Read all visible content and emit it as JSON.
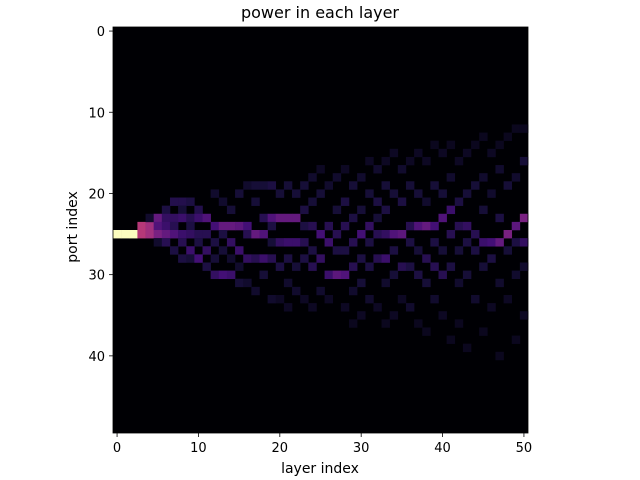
{
  "chart_data": {
    "type": "heatmap",
    "title": "power in each layer",
    "xlabel": "layer index",
    "ylabel": "port index",
    "x_ticks": [
      0,
      10,
      20,
      30,
      40,
      50
    ],
    "y_ticks": [
      0,
      10,
      20,
      30,
      40
    ],
    "xlim": [
      -0.5,
      50.5
    ],
    "ylim": [
      49.5,
      -0.5
    ],
    "n_layers": 51,
    "n_ports": 50,
    "colormap": "magma",
    "colormap_stops": [
      "#000004",
      "#180f3d",
      "#440f76",
      "#721f81",
      "#9e2f7f",
      "#cd4071",
      "#f1605d",
      "#fd9668",
      "#feca8d",
      "#fcfdbf"
    ],
    "background_value": 0.0,
    "cells": [
      [
        0,
        25,
        1.0
      ],
      [
        1,
        25,
        1.0
      ],
      [
        2,
        25,
        1.0
      ],
      [
        3,
        24,
        0.5
      ],
      [
        3,
        25,
        0.5
      ],
      [
        4,
        24,
        0.45
      ],
      [
        4,
        25,
        0.45
      ],
      [
        4,
        23,
        0.08
      ],
      [
        5,
        23,
        0.3
      ],
      [
        5,
        24,
        0.25
      ],
      [
        5,
        25,
        0.35
      ],
      [
        5,
        26,
        0.08
      ],
      [
        6,
        22,
        0.12
      ],
      [
        6,
        23,
        0.18
      ],
      [
        6,
        24,
        0.2
      ],
      [
        6,
        25,
        0.3
      ],
      [
        6,
        26,
        0.15
      ],
      [
        7,
        21,
        0.14
      ],
      [
        7,
        23,
        0.18
      ],
      [
        7,
        24,
        0.15
      ],
      [
        7,
        25,
        0.25
      ],
      [
        7,
        27,
        0.12
      ],
      [
        8,
        21,
        0.14
      ],
      [
        8,
        22,
        0.1
      ],
      [
        8,
        23,
        0.2
      ],
      [
        8,
        25,
        0.2
      ],
      [
        8,
        26,
        0.15
      ],
      [
        8,
        28,
        0.12
      ],
      [
        9,
        21,
        0.12
      ],
      [
        9,
        23,
        0.15
      ],
      [
        9,
        24,
        0.12
      ],
      [
        9,
        25,
        0.18
      ],
      [
        9,
        27,
        0.2
      ],
      [
        9,
        28,
        0.1
      ],
      [
        10,
        22,
        0.14
      ],
      [
        10,
        23,
        0.2
      ],
      [
        10,
        25,
        0.15
      ],
      [
        10,
        26,
        0.12
      ],
      [
        10,
        28,
        0.22
      ],
      [
        11,
        23,
        0.25
      ],
      [
        11,
        25,
        0.15
      ],
      [
        11,
        27,
        0.18
      ],
      [
        11,
        29,
        0.12
      ],
      [
        12,
        20,
        0.08
      ],
      [
        12,
        24,
        0.22
      ],
      [
        12,
        26,
        0.12
      ],
      [
        12,
        28,
        0.1
      ],
      [
        12,
        30,
        0.18
      ],
      [
        13,
        21,
        0.08
      ],
      [
        13,
        24,
        0.3
      ],
      [
        13,
        25,
        0.12
      ],
      [
        13,
        27,
        0.1
      ],
      [
        13,
        30,
        0.22
      ],
      [
        14,
        22,
        0.1
      ],
      [
        14,
        24,
        0.3
      ],
      [
        14,
        26,
        0.18
      ],
      [
        14,
        28,
        0.08
      ],
      [
        14,
        30,
        0.2
      ],
      [
        15,
        20,
        0.1
      ],
      [
        15,
        24,
        0.28
      ],
      [
        15,
        27,
        0.2
      ],
      [
        15,
        29,
        0.08
      ],
      [
        15,
        31,
        0.1
      ],
      [
        16,
        19,
        0.08
      ],
      [
        16,
        24,
        0.22
      ],
      [
        16,
        25,
        0.15
      ],
      [
        16,
        28,
        0.18
      ],
      [
        16,
        31,
        0.08
      ],
      [
        17,
        19,
        0.1
      ],
      [
        17,
        21,
        0.1
      ],
      [
        17,
        25,
        0.3
      ],
      [
        17,
        28,
        0.15
      ],
      [
        17,
        32,
        0.08
      ],
      [
        18,
        19,
        0.1
      ],
      [
        18,
        23,
        0.15
      ],
      [
        18,
        25,
        0.25
      ],
      [
        18,
        28,
        0.2
      ],
      [
        18,
        30,
        0.1
      ],
      [
        19,
        19,
        0.12
      ],
      [
        19,
        23,
        0.25
      ],
      [
        19,
        24,
        0.12
      ],
      [
        19,
        26,
        0.1
      ],
      [
        19,
        28,
        0.15
      ],
      [
        19,
        33,
        0.08
      ],
      [
        20,
        20,
        0.1
      ],
      [
        20,
        23,
        0.3
      ],
      [
        20,
        26,
        0.18
      ],
      [
        20,
        29,
        0.12
      ],
      [
        20,
        33,
        0.06
      ],
      [
        21,
        19,
        0.1
      ],
      [
        21,
        23,
        0.3
      ],
      [
        21,
        26,
        0.2
      ],
      [
        21,
        28,
        0.12
      ],
      [
        21,
        31,
        0.08
      ],
      [
        21,
        34,
        0.06
      ],
      [
        22,
        20,
        0.1
      ],
      [
        22,
        23,
        0.3
      ],
      [
        22,
        26,
        0.2
      ],
      [
        22,
        29,
        0.1
      ],
      [
        22,
        32,
        0.08
      ],
      [
        23,
        19,
        0.1
      ],
      [
        23,
        22,
        0.12
      ],
      [
        23,
        24,
        0.12
      ],
      [
        23,
        26,
        0.15
      ],
      [
        23,
        28,
        0.12
      ],
      [
        23,
        33,
        0.06
      ],
      [
        24,
        18,
        0.08
      ],
      [
        24,
        21,
        0.1
      ],
      [
        24,
        24,
        0.15
      ],
      [
        24,
        27,
        0.12
      ],
      [
        24,
        29,
        0.15
      ],
      [
        24,
        34,
        0.06
      ],
      [
        25,
        17,
        0.06
      ],
      [
        25,
        20,
        0.1
      ],
      [
        25,
        25,
        0.22
      ],
      [
        25,
        28,
        0.18
      ],
      [
        25,
        32,
        0.08
      ],
      [
        26,
        19,
        0.08
      ],
      [
        26,
        24,
        0.15
      ],
      [
        26,
        26,
        0.2
      ],
      [
        26,
        30,
        0.2
      ],
      [
        26,
        33,
        0.06
      ],
      [
        27,
        18,
        0.08
      ],
      [
        27,
        22,
        0.1
      ],
      [
        27,
        25,
        0.15
      ],
      [
        27,
        27,
        0.12
      ],
      [
        27,
        30,
        0.28
      ],
      [
        28,
        17,
        0.06
      ],
      [
        28,
        21,
        0.12
      ],
      [
        28,
        24,
        0.15
      ],
      [
        28,
        27,
        0.12
      ],
      [
        28,
        30,
        0.25
      ],
      [
        28,
        34,
        0.06
      ],
      [
        29,
        19,
        0.1
      ],
      [
        29,
        23,
        0.12
      ],
      [
        29,
        26,
        0.15
      ],
      [
        29,
        29,
        0.15
      ],
      [
        29,
        32,
        0.08
      ],
      [
        29,
        36,
        0.05
      ],
      [
        30,
        18,
        0.08
      ],
      [
        30,
        22,
        0.1
      ],
      [
        30,
        25,
        0.22
      ],
      [
        30,
        28,
        0.12
      ],
      [
        30,
        31,
        0.1
      ],
      [
        30,
        35,
        0.06
      ],
      [
        31,
        16,
        0.06
      ],
      [
        31,
        20,
        0.1
      ],
      [
        31,
        24,
        0.18
      ],
      [
        31,
        26,
        0.12
      ],
      [
        31,
        29,
        0.12
      ],
      [
        31,
        33,
        0.08
      ],
      [
        32,
        17,
        0.08
      ],
      [
        32,
        21,
        0.12
      ],
      [
        32,
        23,
        0.1
      ],
      [
        32,
        25,
        0.15
      ],
      [
        32,
        28,
        0.15
      ],
      [
        32,
        34,
        0.06
      ],
      [
        33,
        16,
        0.06
      ],
      [
        33,
        19,
        0.1
      ],
      [
        33,
        22,
        0.12
      ],
      [
        33,
        25,
        0.18
      ],
      [
        33,
        28,
        0.2
      ],
      [
        33,
        31,
        0.08
      ],
      [
        33,
        36,
        0.05
      ],
      [
        34,
        15,
        0.06
      ],
      [
        34,
        20,
        0.1
      ],
      [
        34,
        25,
        0.25
      ],
      [
        34,
        27,
        0.12
      ],
      [
        34,
        30,
        0.1
      ],
      [
        34,
        35,
        0.06
      ],
      [
        35,
        17,
        0.08
      ],
      [
        35,
        21,
        0.12
      ],
      [
        35,
        25,
        0.28
      ],
      [
        35,
        29,
        0.15
      ],
      [
        35,
        33,
        0.06
      ],
      [
        36,
        16,
        0.06
      ],
      [
        36,
        19,
        0.1
      ],
      [
        36,
        24,
        0.15
      ],
      [
        36,
        26,
        0.12
      ],
      [
        36,
        29,
        0.12
      ],
      [
        36,
        34,
        0.08
      ],
      [
        37,
        15,
        0.06
      ],
      [
        37,
        20,
        0.1
      ],
      [
        37,
        24,
        0.25
      ],
      [
        37,
        27,
        0.1
      ],
      [
        37,
        30,
        0.12
      ],
      [
        37,
        36,
        0.05
      ],
      [
        38,
        16,
        0.06
      ],
      [
        38,
        21,
        0.08
      ],
      [
        38,
        24,
        0.3
      ],
      [
        38,
        28,
        0.15
      ],
      [
        38,
        31,
        0.1
      ],
      [
        38,
        37,
        0.05
      ],
      [
        39,
        14,
        0.05
      ],
      [
        39,
        19,
        0.1
      ],
      [
        39,
        24,
        0.22
      ],
      [
        39,
        26,
        0.12
      ],
      [
        39,
        29,
        0.15
      ],
      [
        39,
        33,
        0.08
      ],
      [
        40,
        15,
        0.06
      ],
      [
        40,
        20,
        0.1
      ],
      [
        40,
        23,
        0.25
      ],
      [
        40,
        27,
        0.1
      ],
      [
        40,
        30,
        0.15
      ],
      [
        40,
        35,
        0.06
      ],
      [
        41,
        14,
        0.05
      ],
      [
        41,
        18,
        0.08
      ],
      [
        41,
        22,
        0.2
      ],
      [
        41,
        25,
        0.15
      ],
      [
        41,
        29,
        0.12
      ],
      [
        41,
        38,
        0.05
      ],
      [
        42,
        16,
        0.06
      ],
      [
        42,
        21,
        0.12
      ],
      [
        42,
        24,
        0.15
      ],
      [
        42,
        27,
        0.1
      ],
      [
        42,
        31,
        0.08
      ],
      [
        42,
        36,
        0.05
      ],
      [
        43,
        15,
        0.06
      ],
      [
        43,
        20,
        0.1
      ],
      [
        43,
        24,
        0.18
      ],
      [
        43,
        26,
        0.12
      ],
      [
        43,
        30,
        0.1
      ],
      [
        43,
        39,
        0.05
      ],
      [
        44,
        14,
        0.05
      ],
      [
        44,
        19,
        0.1
      ],
      [
        44,
        25,
        0.15
      ],
      [
        44,
        27,
        0.12
      ],
      [
        44,
        33,
        0.08
      ],
      [
        45,
        13,
        0.05
      ],
      [
        45,
        18,
        0.08
      ],
      [
        45,
        22,
        0.1
      ],
      [
        45,
        26,
        0.2
      ],
      [
        45,
        29,
        0.1
      ],
      [
        45,
        37,
        0.05
      ],
      [
        46,
        15,
        0.06
      ],
      [
        46,
        20,
        0.08
      ],
      [
        46,
        26,
        0.22
      ],
      [
        46,
        28,
        0.12
      ],
      [
        46,
        34,
        0.06
      ],
      [
        47,
        14,
        0.05
      ],
      [
        47,
        17,
        0.08
      ],
      [
        47,
        23,
        0.12
      ],
      [
        47,
        26,
        0.3
      ],
      [
        47,
        31,
        0.08
      ],
      [
        47,
        40,
        0.05
      ],
      [
        48,
        13,
        0.05
      ],
      [
        48,
        19,
        0.1
      ],
      [
        48,
        25,
        0.35
      ],
      [
        48,
        27,
        0.1
      ],
      [
        48,
        33,
        0.06
      ],
      [
        49,
        12,
        0.05
      ],
      [
        49,
        18,
        0.08
      ],
      [
        49,
        24,
        0.28
      ],
      [
        49,
        26,
        0.12
      ],
      [
        49,
        30,
        0.08
      ],
      [
        49,
        38,
        0.05
      ],
      [
        50,
        12,
        0.05
      ],
      [
        50,
        16,
        0.1
      ],
      [
        50,
        23,
        0.35
      ],
      [
        50,
        26,
        0.18
      ],
      [
        50,
        29,
        0.08
      ],
      [
        50,
        35,
        0.06
      ]
    ]
  }
}
